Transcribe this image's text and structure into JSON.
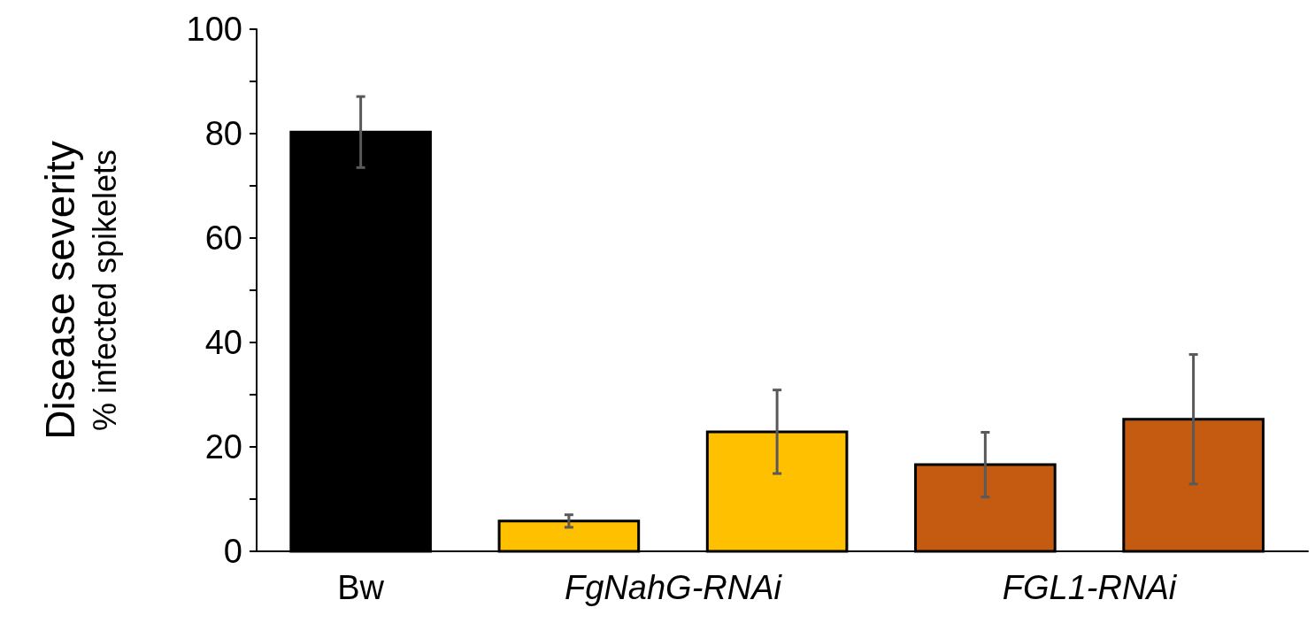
{
  "chart_data": {
    "type": "bar",
    "ylabel": "Disease severity\n% infected spikelets",
    "categories": [
      "Bw",
      "FgNahG-RNAi",
      "FGL1-RNAi"
    ],
    "series": [
      {
        "colors": [
          "#000000",
          "#ffc000",
          "#c55a11"
        ],
        "values": [
          80.3,
          5.8,
          16.6
        ],
        "errors": [
          6.8,
          1.2,
          6.2
        ]
      },
      {
        "colors": [
          null,
          "#ffc000",
          "#c55a11"
        ],
        "values": [
          null,
          22.9,
          25.3
        ],
        "errors": [
          null,
          8,
          12.4
        ]
      }
    ],
    "ylim": [
      0,
      100
    ],
    "yticks": [
      0,
      {
        "value": 10,
        "label": null
      },
      20,
      {
        "value": 30,
        "label": null
      },
      40,
      {
        "value": 50,
        "label": null
      },
      60,
      {
        "value": 70,
        "label": null
      },
      80,
      {
        "value": 90,
        "label": null
      },
      100
    ],
    "grid": false
  }
}
